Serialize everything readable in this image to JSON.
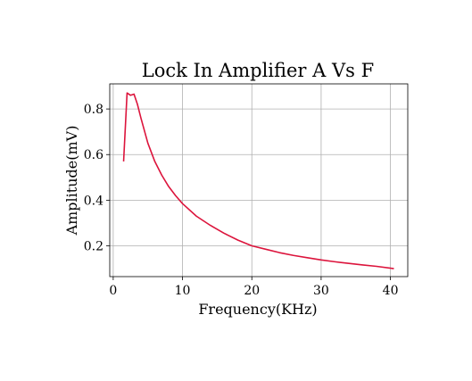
{
  "chart_data": {
    "type": "line",
    "title": "Lock In Amplifier A Vs F",
    "xlabel": "Frequency(KHz)",
    "ylabel": "Amplitude(mV)",
    "xlim": [
      -0.5,
      42.5
    ],
    "ylim": [
      0.065,
      0.91
    ],
    "xticks": [
      0,
      10,
      20,
      30,
      40
    ],
    "yticks": [
      0.2,
      0.4,
      0.6,
      0.8
    ],
    "xtick_labels": [
      "0",
      "10",
      "20",
      "30",
      "40"
    ],
    "ytick_labels": [
      "0.2",
      "0.4",
      "0.6",
      "0.8"
    ],
    "grid": true,
    "series_color": "#dc143c",
    "series": [
      {
        "x": [
          1.5,
          2.0,
          2.5,
          3.0,
          3.5,
          4.0,
          5.0,
          6.0,
          7.0,
          8.0,
          9.0,
          10.0,
          12.0,
          14.0,
          16.0,
          18.0,
          20.0,
          22.0,
          24.0,
          26.0,
          28.0,
          30.0,
          32.0,
          34.0,
          36.0,
          38.0,
          40.5
        ],
        "y": [
          0.57,
          0.87,
          0.86,
          0.865,
          0.82,
          0.76,
          0.65,
          0.57,
          0.51,
          0.46,
          0.42,
          0.385,
          0.33,
          0.29,
          0.255,
          0.225,
          0.2,
          0.185,
          0.17,
          0.158,
          0.148,
          0.138,
          0.13,
          0.123,
          0.116,
          0.11,
          0.1
        ]
      }
    ]
  }
}
